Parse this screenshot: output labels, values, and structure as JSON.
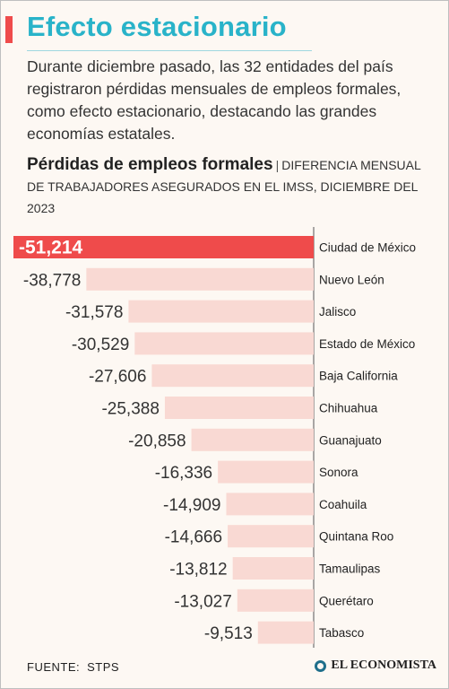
{
  "header": {
    "title": "Efecto estacionario",
    "intro": "Durante diciembre pasado, las 32 entidades del país registraron pérdidas mensuales de empleos formales, como efecto estacionario, destacando las grandes economías estatales."
  },
  "subtitle": {
    "bold": "Pérdidas de empleos formales",
    "separator": "|",
    "rest": "DIFERENCIA MENSUAL DE TRABAJADORES ASEGURADOS EN EL IMSS, DICIEMBRE DEL 2023"
  },
  "footer": {
    "source_label": "FUENTE:",
    "source": "STPS",
    "brand": "EL ECONOMISTA"
  },
  "colors": {
    "title": "#29b3c9",
    "highlight_bar": "#ef4b4b",
    "bar": "#f9d9d3",
    "accent": "#ef4b4b",
    "text": "#333333"
  },
  "chart_data": {
    "type": "bar",
    "orientation": "horizontal",
    "categories": [
      "Ciudad de México",
      "Nuevo León",
      "Jalisco",
      "Estado de México",
      "Baja California",
      "Chihuahua",
      "Guanajuato",
      "Sonora",
      "Coahuila",
      "Quintana Roo",
      "Tamaulipas",
      "Querétaro",
      "Tabasco"
    ],
    "values": [
      -51214,
      -38778,
      -31578,
      -30529,
      -27606,
      -25388,
      -20858,
      -16336,
      -14909,
      -14666,
      -13812,
      -13027,
      -9513
    ],
    "labels": [
      "-51,214",
      "-38,778",
      "-31,578",
      "-30,529",
      "-27,606",
      "-25,388",
      "-20,858",
      "-16,336",
      "-14,909",
      "-14,666",
      "-13,812",
      "-13,027",
      "-9,513"
    ],
    "highlight_index": 0
  }
}
